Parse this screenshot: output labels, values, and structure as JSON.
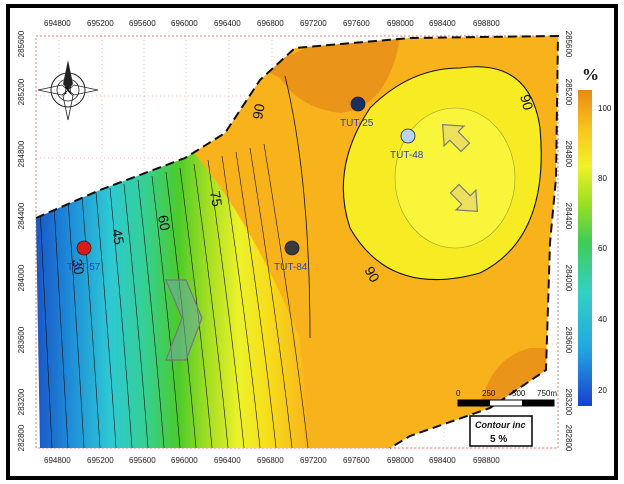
{
  "map": {
    "x_ticks": [
      "694800",
      "695200",
      "695600",
      "696000",
      "696400",
      "696800",
      "697200",
      "697600",
      "698000",
      "698400",
      "698800"
    ],
    "y_ticks": [
      "285600",
      "285200",
      "284800",
      "284400",
      "284000",
      "283600",
      "283200",
      "282800"
    ],
    "contour_labels": [
      "30",
      "45",
      "60",
      "75",
      "90",
      "90",
      "90"
    ],
    "wells": [
      {
        "name": "TUT-57",
        "color": "#d81b1b",
        "label_color": "#2a3cc7"
      },
      {
        "name": "TUT-84",
        "color": "#3a3a3a",
        "label_color": "#2a3cc7"
      },
      {
        "name": "TUT-25",
        "color": "#1b2f63",
        "label_color": "#2a3cc7"
      },
      {
        "name": "TUT-48",
        "color": "#b8d4f0",
        "label_color": "#2a3cc7"
      }
    ],
    "north_label": "N"
  },
  "legend": {
    "unit": "%",
    "values": [
      "100",
      "80",
      "60",
      "40",
      "20"
    ]
  },
  "scale_bar": {
    "labels": [
      "0",
      "250",
      "500",
      "750m"
    ]
  },
  "contour_inc": {
    "title": "Contour inc",
    "value": "5 %"
  }
}
